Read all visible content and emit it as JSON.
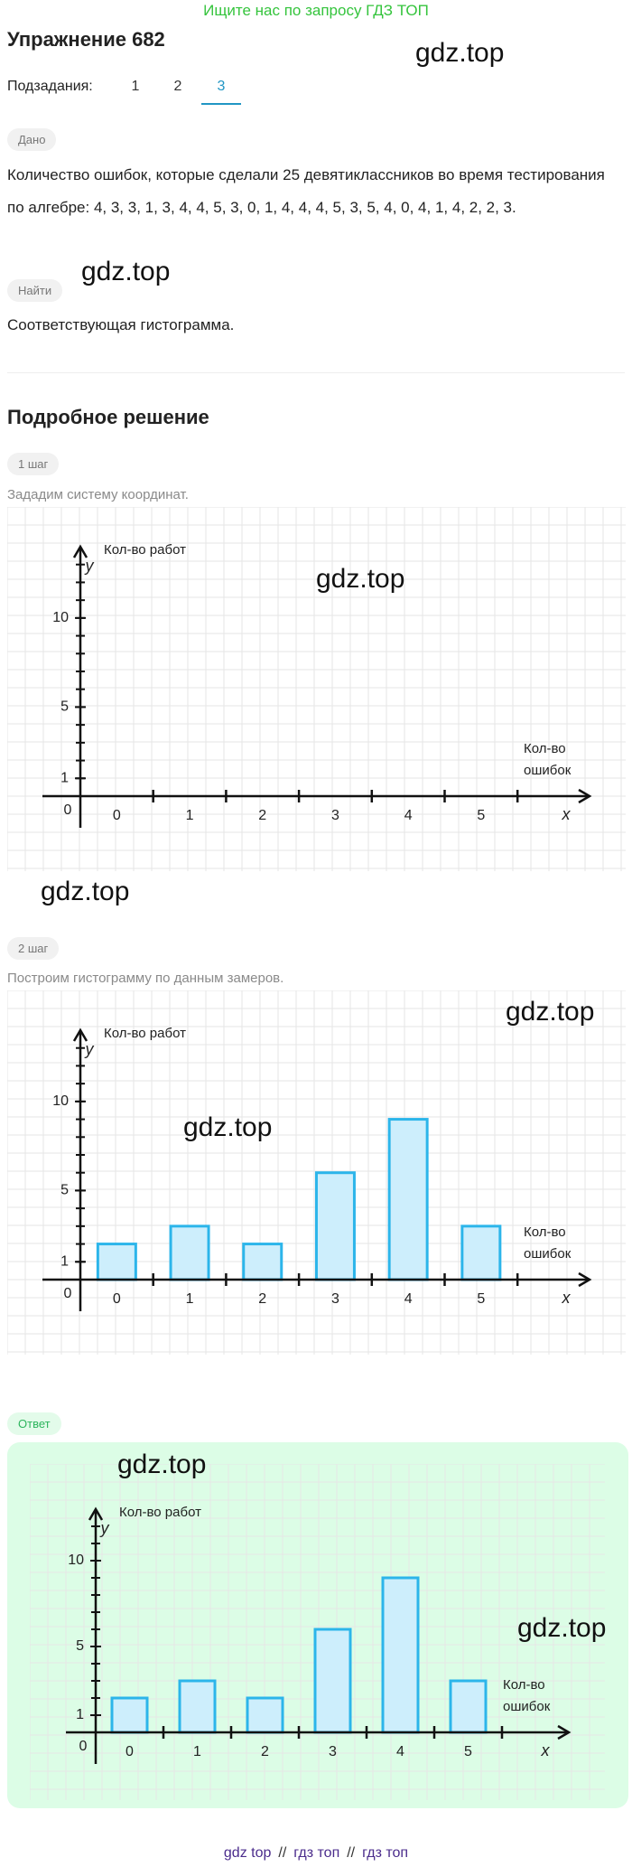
{
  "banner": "Ищите нас по запросу ГДЗ ТОП",
  "title": "Упражнение 682",
  "watermark": "gdz.top",
  "subtasks": {
    "label": "Подзадания:",
    "tabs": [
      "1",
      "2",
      "3"
    ],
    "active": 2
  },
  "given": {
    "badge": "Дано",
    "text": "Количество ошибок, которые сделали 25 девятиклассников во время тестирования по алгебре: 4, 3, 3, 1, 3, 4, 4, 5, 3, 0, 1, 4, 4, 4, 5, 3, 5, 4, 0, 4, 1, 4, 2, 2, 3."
  },
  "find": {
    "badge": "Найти",
    "text": "Соответствующая гистограмма."
  },
  "solution_title": "Подробное решение",
  "steps": [
    {
      "badge": "1 шаг",
      "text": "Зададим систему координат.",
      "chart_data": {
        "type": "bar",
        "y_title": "Кол-во работ",
        "y_label": "y",
        "x_title": [
          "Кол-во",
          "ошибок"
        ],
        "x_label": "x",
        "origin_label": "0",
        "categories": [
          "0",
          "1",
          "2",
          "3",
          "4",
          "5"
        ],
        "ylim": [
          0,
          14
        ],
        "yticks": [
          1,
          5,
          10
        ],
        "color": "#2cb5ea",
        "fill": "#cdeefc"
      }
    },
    {
      "badge": "2 шаг",
      "text": "Построим гистограмму по данным замеров.",
      "chart_data": {
        "type": "bar",
        "y_title": "Кол-во работ",
        "y_label": "y",
        "x_title": [
          "Кол-во",
          "ошибок"
        ],
        "x_label": "x",
        "origin_label": "0",
        "categories": [
          "0",
          "1",
          "2",
          "3",
          "4",
          "5"
        ],
        "values": [
          2,
          3,
          2,
          6,
          9,
          3
        ],
        "ylim": [
          0,
          14
        ],
        "yticks": [
          1,
          5,
          10
        ],
        "color": "#2cb5ea",
        "fill": "#cdeefc"
      }
    }
  ],
  "answer": {
    "badge": "Ответ",
    "chart_data": {
      "type": "bar",
      "y_title": "Кол-во работ",
      "y_label": "y",
      "x_title": [
        "Кол-во",
        "ошибок"
      ],
      "x_label": "x",
      "origin_label": "0",
      "categories": [
        "0",
        "1",
        "2",
        "3",
        "4",
        "5"
      ],
      "values": [
        2,
        3,
        2,
        6,
        9,
        3
      ],
      "ylim": [
        0,
        13
      ],
      "yticks": [
        1,
        5,
        10
      ],
      "color": "#2cb5ea",
      "fill": "#cdeefc"
    }
  },
  "footer": {
    "links": [
      "gdz top",
      "гдз топ",
      "гдз топ"
    ],
    "separator": "//"
  }
}
